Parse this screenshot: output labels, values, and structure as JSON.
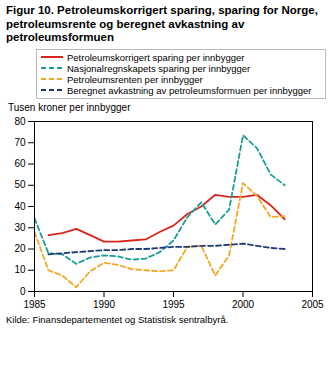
{
  "chart_data": {
    "type": "line",
    "title": "Figur 10. Petroleumskorrigert sparing, sparing for Norge, petroleumsrente og beregnet avkastning av petroleumsformuen",
    "y_label": "Tusen kroner per innbygger",
    "source": "Kilde: Finansdepartementet og Statistisk sentralbyrå.",
    "x": [
      1985,
      1986,
      1987,
      1988,
      1989,
      1990,
      1991,
      1992,
      1993,
      1994,
      1995,
      1996,
      1997,
      1998,
      1999,
      2000,
      2001,
      2002,
      2003
    ],
    "xlim": [
      1985,
      2005
    ],
    "xticks": [
      1985,
      1990,
      1995,
      2000,
      2005
    ],
    "ylim": [
      0,
      80
    ],
    "yticks": [
      0,
      10,
      20,
      30,
      40,
      50,
      60,
      70,
      80
    ],
    "grid": false,
    "series": [
      {
        "name": "Petroleumskorrigert sparing per innbygger",
        "color": "#d7261e",
        "line_style": "solid",
        "values": [
          null,
          26.5,
          27.5,
          29.5,
          26.5,
          23.5,
          23.5,
          24,
          24.5,
          28,
          31,
          36.5,
          40,
          45.5,
          44.5,
          44.5,
          45.5,
          40.5,
          34
        ]
      },
      {
        "name": "Nasjonalregnskapets sparing per innbygger",
        "color": "#1a9e96",
        "line_style": "dashed",
        "values": [
          34.5,
          18,
          17.5,
          13,
          16,
          17,
          16.5,
          15,
          15.5,
          18.5,
          24,
          35,
          42,
          31.5,
          38.5,
          73.5,
          67.5,
          55,
          50
        ]
      },
      {
        "name": "Petroleumsrenten per innbygger",
        "color": "#f5a623",
        "line_style": "dashed",
        "values": [
          28,
          10,
          7.5,
          2,
          9.5,
          13.5,
          12.5,
          10.5,
          10,
          9.5,
          10,
          21,
          21.5,
          7.5,
          17,
          51,
          45,
          35,
          35.5
        ]
      },
      {
        "name": "Beregnet avkastning av petroleumsformuen per innbygger",
        "color": "#1f3a75",
        "line_style": "dashed",
        "values": [
          null,
          17.5,
          18,
          18.5,
          19,
          19.5,
          19.5,
          20,
          20,
          20.5,
          21,
          21,
          21.5,
          21.5,
          22,
          22.5,
          21.5,
          20.5,
          20
        ]
      }
    ]
  }
}
